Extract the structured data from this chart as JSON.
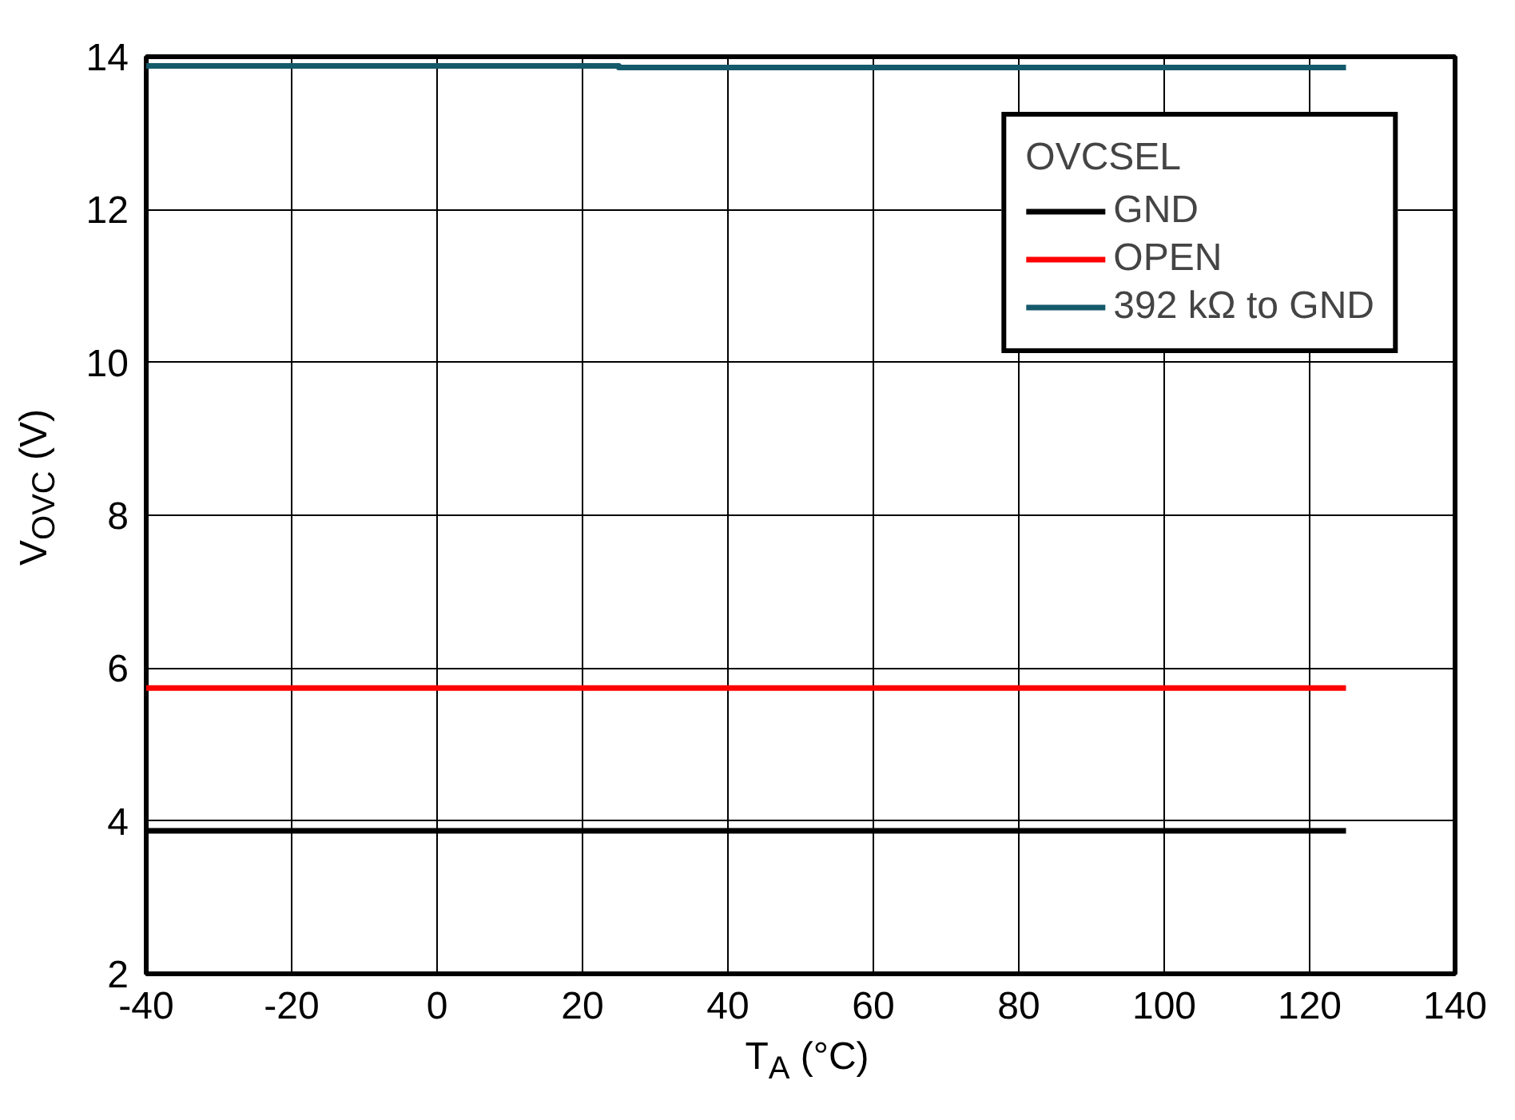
{
  "chart_data": {
    "type": "line",
    "xlabel": "T$_{A}$ (°C)",
    "ylabel": "V$_{OVC}$ (V)",
    "legend_title": "OVCSEL",
    "x": [
      -40,
      25,
      25,
      125
    ],
    "series": [
      {
        "name": "GND",
        "color": "#000000",
        "values": [
          3.87,
          3.87,
          3.87,
          3.87
        ]
      },
      {
        "name": "OPEN",
        "color": "#ff0000",
        "values": [
          5.74,
          5.74,
          5.74,
          5.74
        ]
      },
      {
        "name": "392 kΩ to GND",
        "color": "#155a6b",
        "values": [
          13.88,
          13.88,
          13.86,
          13.86
        ]
      }
    ],
    "xlim": [
      -40,
      140
    ],
    "xticks": [
      -40,
      -20,
      0,
      20,
      40,
      60,
      80,
      100,
      120,
      140
    ],
    "ylim": [
      2,
      14
    ],
    "yticks": [
      2,
      4,
      6,
      8,
      10,
      12,
      14
    ],
    "grid": true,
    "legend": "top right",
    "line_style": "solid",
    "marker": "none"
  }
}
